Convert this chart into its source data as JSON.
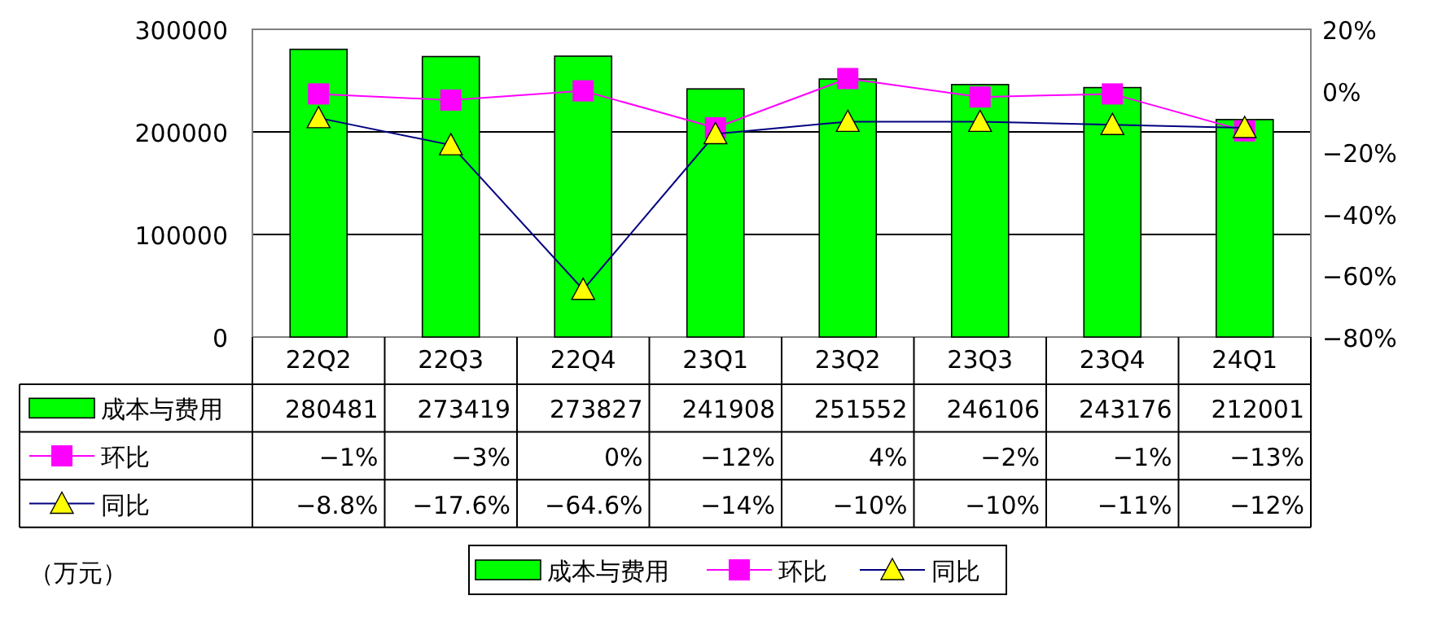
{
  "chart_data": {
    "type": "bar",
    "categories": [
      "22Q2",
      "22Q3",
      "22Q4",
      "23Q1",
      "23Q2",
      "23Q3",
      "23Q4",
      "24Q1"
    ],
    "series": [
      {
        "name": "成本与费用",
        "color": "#00ff00",
        "values": [
          280481,
          273419,
          273827,
          241908,
          251552,
          246106,
          243176,
          212001
        ]
      },
      {
        "name": "环比",
        "type": "line",
        "axis": "y2",
        "color": "#ff00ff",
        "marker": "square",
        "values": [
          -1,
          -3,
          0,
          -12,
          4,
          -2,
          -1,
          -13
        ],
        "value_labels": [
          "−1%",
          "−3%",
          "0%",
          "−12%",
          "4%",
          "−2%",
          "−1%",
          "−13%"
        ]
      },
      {
        "name": "同比",
        "type": "line",
        "axis": "y2",
        "color": "#000080",
        "marker": "triangle",
        "values": [
          -8.8,
          -17.6,
          -64.6,
          -14,
          -10,
          -10,
          -11,
          -12
        ],
        "value_labels": [
          "−8.8%",
          "−17.6%",
          "−64.6%",
          "−14%",
          "−10%",
          "−10%",
          "−11%",
          "−12%"
        ]
      }
    ],
    "ylim": [
      0,
      300000
    ],
    "yticks": [
      0,
      100000,
      200000,
      300000
    ],
    "y2lim": [
      -80,
      20
    ],
    "y2ticks": [
      {
        "value": 20,
        "label": "20%"
      },
      {
        "value": 0,
        "label": "0%"
      },
      {
        "value": -20,
        "label": "−20%"
      },
      {
        "value": -40,
        "label": "−40%"
      },
      {
        "value": -60,
        "label": "−60%"
      },
      {
        "value": -80,
        "label": "−80%"
      }
    ],
    "grid": "y",
    "legend": "bottom",
    "data_labels": true,
    "annotations": [
      "（万元）"
    ]
  }
}
